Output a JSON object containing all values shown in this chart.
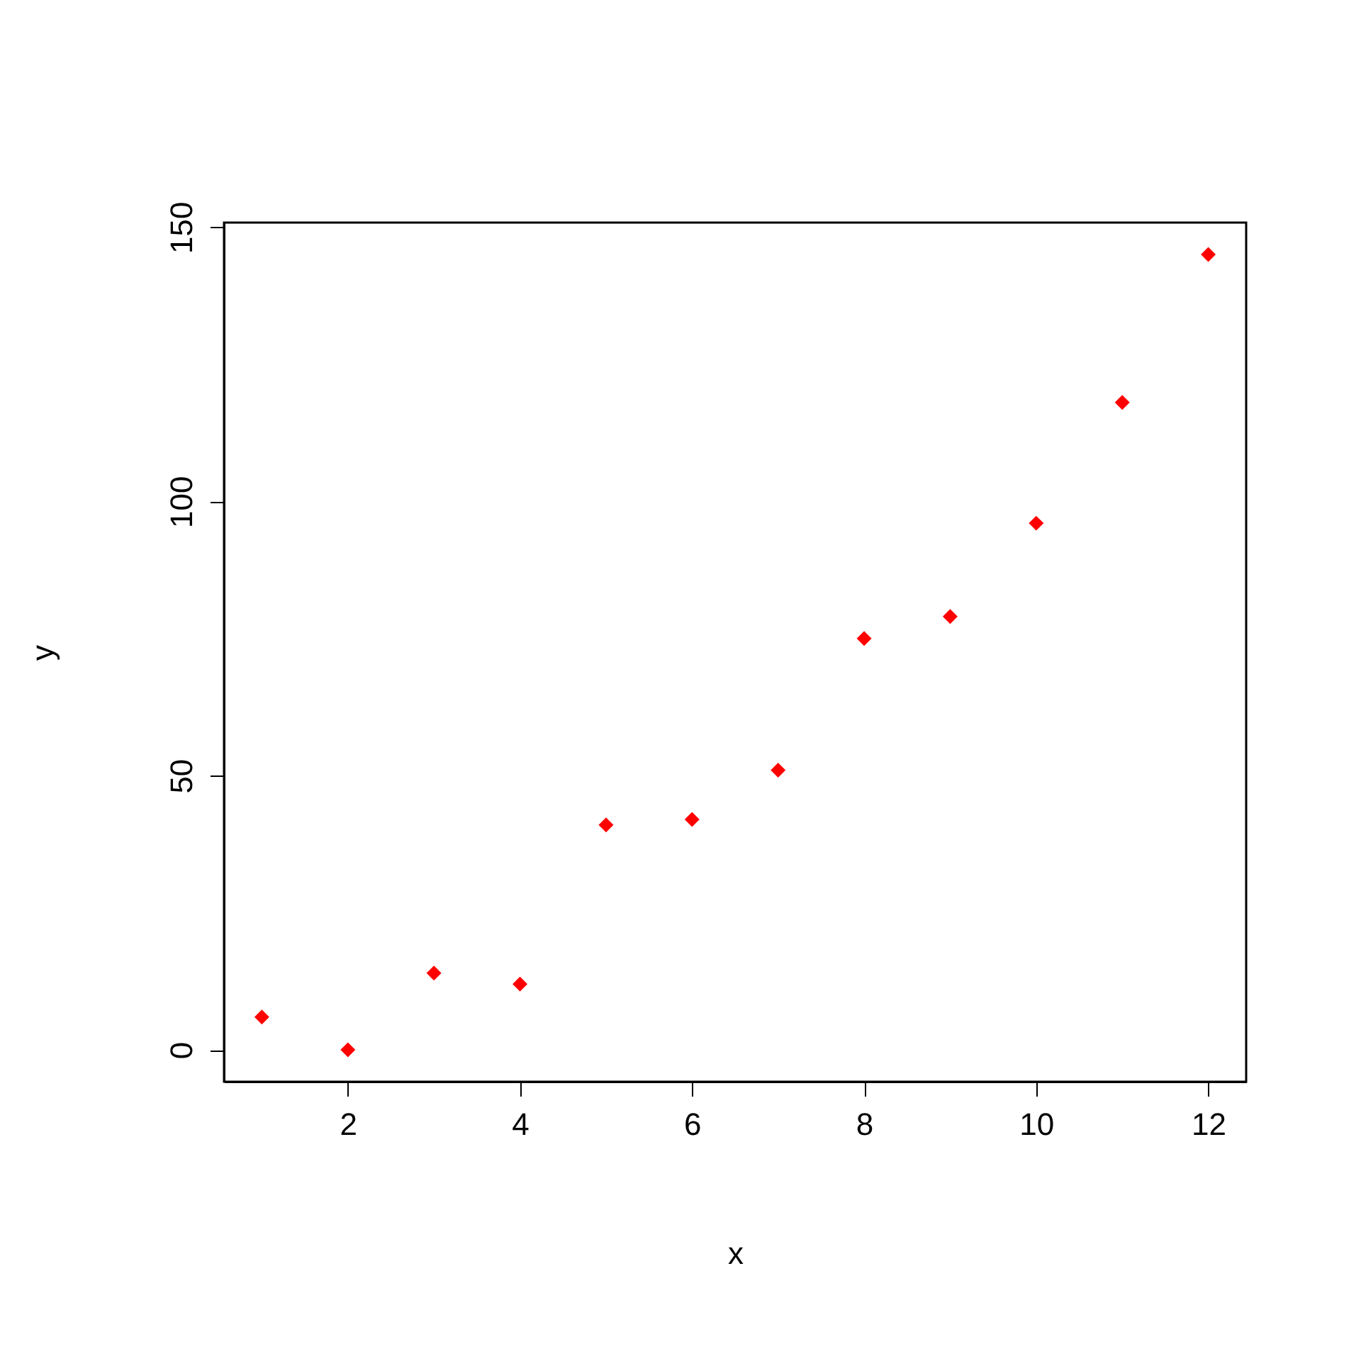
{
  "chart_data": {
    "type": "scatter",
    "xlabel": "x",
    "ylabel": "y",
    "x": [
      1,
      2,
      3,
      4,
      5,
      6,
      7,
      8,
      9,
      10,
      11,
      12
    ],
    "series": [
      {
        "color": "#ff0000",
        "values": [
          6,
          0,
          14,
          12,
          41,
          42,
          51,
          75,
          79,
          96,
          118,
          145
        ]
      }
    ],
    "xlim": [
      0.56,
      12.44
    ],
    "ylim": [
      -5.8,
      150.8
    ],
    "xticks": [
      2,
      4,
      6,
      8,
      10,
      12
    ],
    "yticks": [
      0,
      50,
      100,
      150
    ],
    "marker": "diamond",
    "grid": false
  }
}
